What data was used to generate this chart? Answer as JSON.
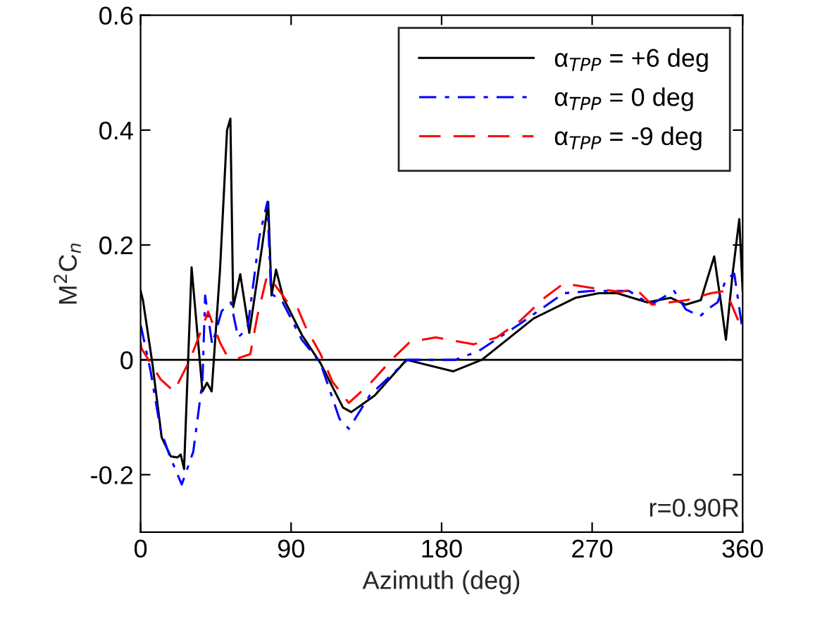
{
  "chart_data": {
    "type": "line",
    "xlabel": "Azimuth (deg)",
    "ylabel": "M$^{2}$C$_{n}$",
    "xlim": [
      0,
      360
    ],
    "xticks": [
      0,
      90,
      180,
      270,
      360
    ],
    "ylim": [
      -0.3,
      0.6
    ],
    "yticks": [
      {
        "value": -0.2,
        "label": "-0.2"
      },
      0,
      0.2,
      0.4,
      0.6
    ],
    "grid": false,
    "legend": "top right",
    "marker": "none",
    "ref_lines": [
      {
        "axis": "y",
        "value": 0,
        "color": "#000000",
        "line_style": "solid"
      }
    ],
    "annotations": [
      {
        "text": "r=0.90R"
      }
    ],
    "series": [
      {
        "name": "α$_{TPP}$ = +6 deg",
        "color": "#000000",
        "line_style": "solid",
        "x": [
          0,
          1.4,
          7,
          12.6,
          18,
          22,
          24,
          26,
          30.5,
          37,
          39.7,
          42.5,
          47.5,
          51.7,
          53.7,
          55.4,
          59.6,
          65,
          72.7,
          76.3,
          78.3,
          81,
          85.3,
          96.5,
          107.6,
          121,
          126,
          140,
          159,
          187,
          204,
          235,
          260,
          274,
          285,
          303,
          317,
          326,
          335,
          343,
          347,
          350,
          354,
          358,
          360
        ],
        "values": [
          0.12,
          0.104,
          -0.005,
          -0.135,
          -0.168,
          -0.17,
          -0.165,
          -0.19,
          0.161,
          -0.055,
          -0.04,
          -0.055,
          0.157,
          0.4,
          0.42,
          0.092,
          0.149,
          0.047,
          0.198,
          0.275,
          0.112,
          0.157,
          0.108,
          0.043,
          -0.006,
          -0.083,
          -0.091,
          -0.062,
          0,
          -0.02,
          0,
          0.072,
          0.108,
          0.116,
          0.116,
          0.1,
          0.108,
          0.096,
          0.104,
          0.18,
          0.1,
          0.035,
          0.15,
          0.245,
          0.12
        ]
      },
      {
        "name": "α$_{TPP}$ = 0 deg",
        "color": "#0000ff",
        "line_style": "dashdot",
        "x": [
          0,
          0.5,
          6,
          11.8,
          17.5,
          24.6,
          31.5,
          37,
          38.6,
          42.8,
          48.5,
          54,
          58.3,
          64,
          71,
          75.8,
          78,
          85,
          96.4,
          107.6,
          119,
          124.5,
          137,
          159.6,
          188,
          202,
          227,
          253,
          270,
          292,
          305,
          319,
          326,
          334.5,
          340,
          345,
          350,
          355,
          360
        ],
        "values": [
          0.06,
          0.055,
          -0.02,
          -0.12,
          -0.168,
          -0.217,
          -0.16,
          -0.037,
          0.112,
          0.027,
          0.085,
          0.1,
          0.039,
          0.055,
          0.214,
          0.275,
          0.116,
          0.1,
          0.035,
          -0.006,
          -0.103,
          -0.12,
          -0.062,
          0,
          0,
          0.015,
          0.063,
          0.116,
          0.12,
          0.12,
          0.096,
          0.12,
          0.088,
          0.076,
          0.09,
          0.1,
          0.14,
          0.15,
          0.05
        ]
      },
      {
        "name": "α$_{TPP}$ = -9 deg",
        "color": "#ff0000",
        "line_style": "dashed",
        "x": [
          0,
          0.5,
          12,
          20,
          29.5,
          34.8,
          40.4,
          47.5,
          51.7,
          58.6,
          65.6,
          69.8,
          75.5,
          79.7,
          88,
          93.6,
          99,
          107.6,
          114.7,
          124.5,
          137,
          151,
          161,
          176.5,
          199,
          213,
          227,
          241.5,
          253,
          272.5,
          287,
          296,
          305.7,
          326.8,
          341,
          350,
          360
        ],
        "values": [
          0.03,
          0.02,
          -0.034,
          -0.055,
          0,
          0.04,
          0.084,
          0.03,
          0.007,
          0.003,
          0.01,
          0.076,
          0.145,
          0.133,
          0.1,
          0.092,
          0.055,
          0.01,
          -0.038,
          -0.075,
          -0.042,
          0.003,
          0.031,
          0.039,
          0.027,
          0.039,
          0.068,
          0.108,
          0.133,
          0.124,
          0.118,
          0.124,
          0.096,
          0.104,
          0.116,
          0.12,
          0.05
        ]
      }
    ]
  }
}
